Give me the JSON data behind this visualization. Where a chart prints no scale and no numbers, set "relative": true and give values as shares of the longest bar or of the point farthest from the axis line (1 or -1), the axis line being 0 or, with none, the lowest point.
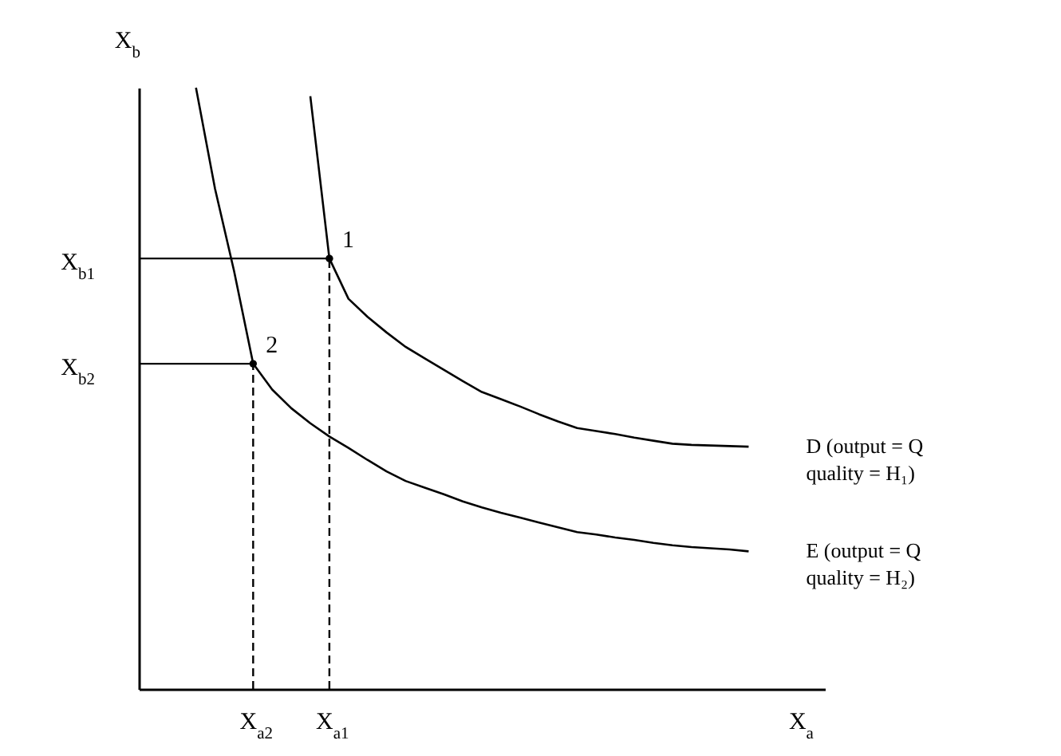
{
  "chart_data": {
    "type": "line",
    "xlabel": "X$_{a}$",
    "ylabel": "X$_{b}$",
    "relative": true,
    "legend": false,
    "categories": [
      null,
      null,
      null,
      null,
      null,
      null,
      "X$_{a2}$",
      null,
      null,
      null,
      "X$_{a1}$",
      null,
      null,
      null,
      null,
      null,
      null,
      null,
      null,
      null,
      null,
      null,
      null,
      null,
      null,
      null,
      null,
      null,
      null,
      null,
      null,
      null,
      null,
      null,
      null,
      null,
      null
    ],
    "series": [
      {
        "name": "D (output = Q\nquality = H₁)",
        "color": "#000000",
        "values": [
          null,
          null,
          null,
          null,
          null,
          null,
          null,
          null,
          null,
          0.986,
          0.716,
          0.649,
          0.619,
          0.593,
          0.569,
          0.55,
          0.531,
          0.512,
          0.494,
          0.482,
          0.47,
          0.457,
          0.445,
          0.434,
          0.429,
          0.424,
          0.418,
          0.413,
          0.408,
          0.406,
          0.405,
          0.404,
          0.403,
          null,
          null,
          null,
          null
        ]
      },
      {
        "name": "E (output = Q\nquality = H₂)",
        "color": "#000000",
        "values": [
          null,
          null,
          null,
          1,
          0.832,
          0.695,
          0.541,
          0.498,
          0.467,
          0.442,
          0.42,
          0.401,
          0.381,
          0.362,
          0.346,
          0.335,
          0.324,
          0.312,
          0.302,
          0.293,
          0.285,
          0.277,
          0.269,
          0.261,
          0.257,
          0.252,
          0.248,
          0.243,
          0.239,
          0.236,
          0.234,
          0.232,
          0.229,
          null,
          null,
          null,
          null
        ]
      },
      {
        "type": "scatter",
        "color": "#000000",
        "values": [
          null,
          null,
          null,
          null,
          null,
          null,
          0.541,
          null,
          null,
          null,
          0.716,
          null,
          null,
          null,
          null,
          null,
          null,
          null,
          null,
          null,
          null,
          null,
          null,
          null,
          null,
          null,
          null,
          null,
          null,
          null,
          null,
          null,
          null,
          null,
          null,
          null,
          null
        ]
      }
    ],
    "annotations": [
      "2",
      "1",
      "X$_{b2}$",
      "X$_{b1}$"
    ]
  }
}
